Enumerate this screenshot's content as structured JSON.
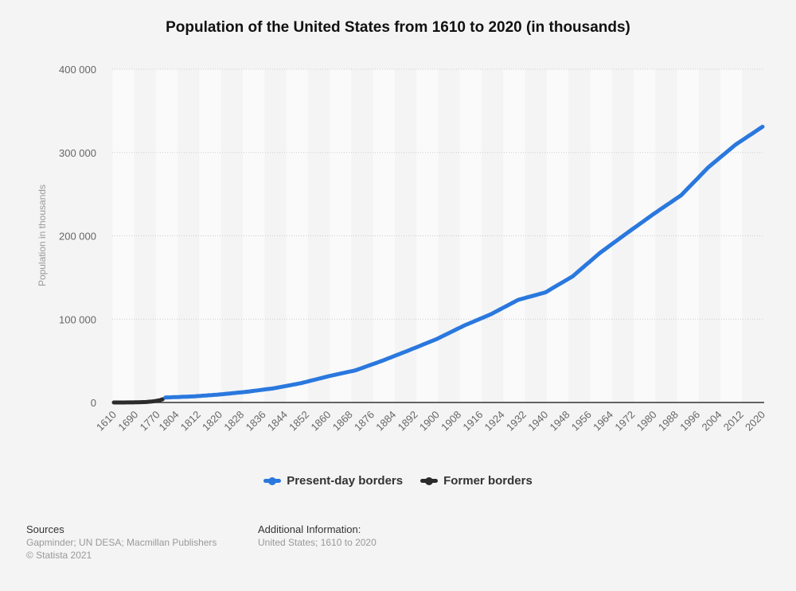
{
  "chart_data": {
    "type": "line",
    "title": "Population of the United States from 1610 to 2020 (in thousands)",
    "xlabel": "",
    "ylabel": "Population in thousands",
    "ylim": [
      0,
      400000
    ],
    "yticks": [
      0,
      100000,
      200000,
      300000,
      400000
    ],
    "ytick_labels": [
      "0",
      "100 000",
      "200 000",
      "300 000",
      "400 000"
    ],
    "xtick_labels": [
      "1610",
      "1690",
      "1770",
      "1804",
      "1812",
      "1820",
      "1828",
      "1836",
      "1844",
      "1852",
      "1860",
      "1868",
      "1876",
      "1884",
      "1892",
      "1900",
      "1908",
      "1916",
      "1924",
      "1932",
      "1940",
      "1948",
      "1956",
      "1964",
      "1972",
      "1980",
      "1988",
      "1996",
      "2004",
      "2012",
      "2020"
    ],
    "grid": true,
    "legend_placement": "bottom",
    "series": [
      {
        "name": "Present-day borders",
        "color": "#2a78de",
        "interval": "annual (interpolated from decadal points)",
        "x": [
          1800,
          1810,
          1820,
          1830,
          1840,
          1850,
          1860,
          1870,
          1880,
          1890,
          1900,
          1910,
          1920,
          1930,
          1940,
          1950,
          1960,
          1970,
          1980,
          1990,
          2000,
          2010,
          2020
        ],
        "values": [
          6000,
          7240,
          9638,
          12866,
          17069,
          23192,
          31443,
          38558,
          50189,
          62980,
          76212,
          92228,
          106021,
          123203,
          132165,
          151326,
          179323,
          203212,
          226546,
          248710,
          282162,
          309327,
          331000
        ]
      },
      {
        "name": "Former borders",
        "color": "#2b2b2b",
        "interval": "decadal",
        "x": [
          1610,
          1620,
          1630,
          1640,
          1650,
          1660,
          1670,
          1680,
          1690,
          1700,
          1710,
          1720,
          1730,
          1740,
          1750,
          1760,
          1770,
          1780,
          1790
        ],
        "values": [
          0.35,
          2.3,
          4.6,
          26.6,
          50.4,
          75,
          111,
          151,
          210,
          251,
          332,
          466,
          629,
          906,
          1171,
          1594,
          2148,
          2780,
          3929
        ]
      }
    ]
  },
  "footer": {
    "sources_label": "Sources",
    "sources": "Gapminder; UN DESA; Macmillan Publishers",
    "copyright": "© Statista 2021",
    "additional_label": "Additional Information:",
    "additional": "United States; 1610 to 2020"
  }
}
